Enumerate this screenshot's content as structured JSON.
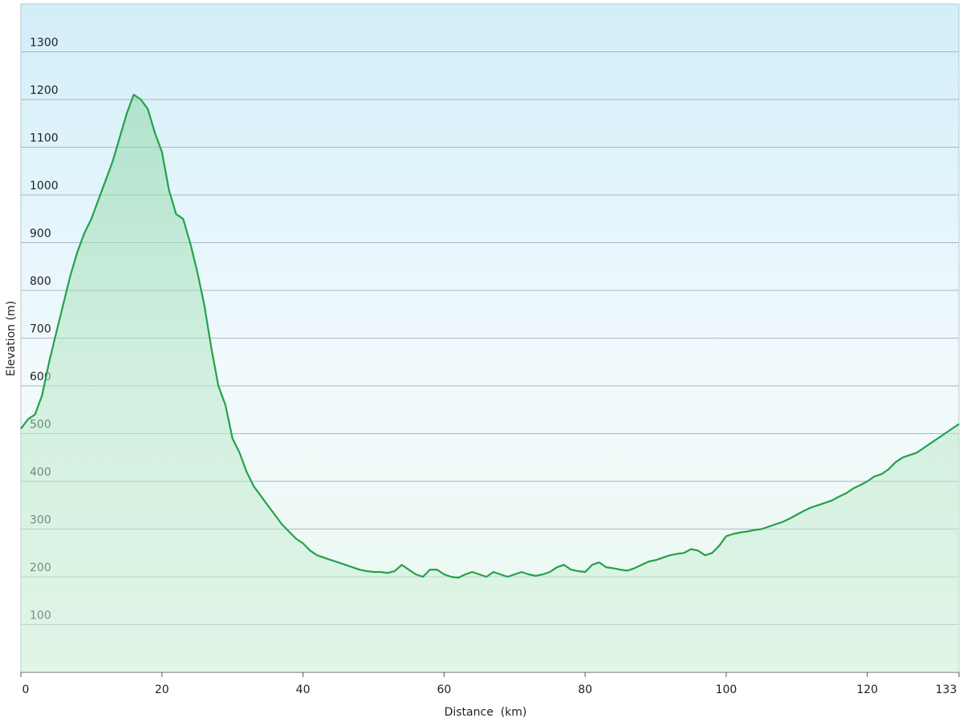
{
  "chart_data": {
    "type": "area",
    "xlabel": "Distance  (km)",
    "ylabel": "Elevation (m)",
    "x": [
      0,
      1,
      2,
      3,
      4,
      5,
      6,
      7,
      8,
      9,
      10,
      11,
      12,
      13,
      14,
      15,
      16,
      17,
      18,
      19,
      20,
      21,
      22,
      23,
      24,
      25,
      26,
      27,
      28,
      29,
      30,
      31,
      32,
      33,
      34,
      35,
      36,
      37,
      38,
      39,
      40,
      41,
      42,
      43,
      44,
      45,
      46,
      47,
      48,
      49,
      50,
      51,
      52,
      53,
      54,
      55,
      56,
      57,
      58,
      59,
      60,
      61,
      62,
      63,
      64,
      65,
      66,
      67,
      68,
      69,
      70,
      71,
      72,
      73,
      74,
      75,
      76,
      77,
      78,
      79,
      80,
      81,
      82,
      83,
      84,
      85,
      86,
      87,
      88,
      89,
      90,
      91,
      92,
      93,
      94,
      95,
      96,
      97,
      98,
      99,
      100,
      101,
      102,
      103,
      104,
      105,
      106,
      107,
      108,
      109,
      110,
      111,
      112,
      113,
      114,
      115,
      116,
      117,
      118,
      119,
      120,
      121,
      122,
      123,
      124,
      125,
      126,
      127,
      128,
      129,
      130,
      131,
      132,
      133
    ],
    "values": [
      510,
      530,
      540,
      580,
      650,
      710,
      770,
      830,
      880,
      920,
      950,
      990,
      1030,
      1070,
      1120,
      1170,
      1210,
      1200,
      1180,
      1130,
      1090,
      1010,
      960,
      950,
      900,
      840,
      770,
      680,
      600,
      560,
      490,
      460,
      420,
      390,
      370,
      350,
      330,
      310,
      295,
      280,
      270,
      255,
      245,
      240,
      235,
      230,
      225,
      220,
      215,
      212,
      210,
      210,
      208,
      212,
      225,
      215,
      205,
      200,
      215,
      215,
      205,
      200,
      198,
      205,
      210,
      205,
      200,
      210,
      205,
      200,
      205,
      210,
      205,
      202,
      205,
      210,
      220,
      225,
      215,
      212,
      210,
      225,
      230,
      220,
      218,
      215,
      213,
      218,
      225,
      232,
      235,
      240,
      245,
      248,
      250,
      258,
      255,
      245,
      250,
      265,
      285,
      290,
      293,
      295,
      298,
      300,
      305,
      310,
      315,
      322,
      330,
      338,
      345,
      350,
      355,
      360,
      368,
      375,
      385,
      392,
      400,
      410,
      415,
      425,
      440,
      450,
      455,
      460,
      470,
      480,
      490,
      500,
      510,
      520
    ],
    "color": "#22a24a",
    "xlim": [
      0,
      133
    ],
    "ylim": [
      0,
      1400
    ],
    "xticks": [
      0,
      20,
      40,
      60,
      80,
      100,
      120,
      133
    ],
    "yticks": [
      100,
      200,
      300,
      400,
      500,
      600,
      700,
      800,
      900,
      1000,
      1100,
      1200,
      1300
    ],
    "grid": true
  }
}
